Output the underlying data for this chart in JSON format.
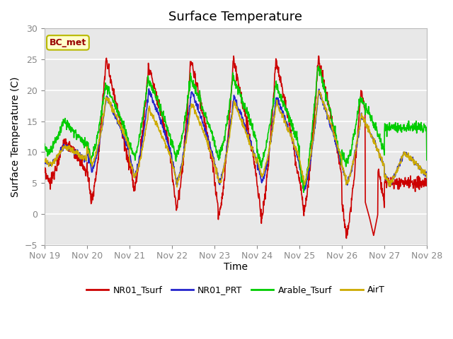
{
  "title": "Surface Temperature",
  "ylabel": "Surface Temperature (C)",
  "xlabel": "Time",
  "ylim": [
    -5,
    30
  ],
  "yticks": [
    -5,
    0,
    5,
    10,
    15,
    20,
    25,
    30
  ],
  "x_tick_labels": [
    "Nov 19",
    "Nov 20",
    "Nov 21",
    "Nov 22",
    "Nov 23",
    "Nov 24",
    "Nov 25",
    "Nov 26",
    "Nov 27",
    "Nov 28"
  ],
  "plot_bg_color": "#e8e8e8",
  "annotation_text": "BC_met",
  "annotation_bg": "#ffffcc",
  "annotation_border": "#b8b800",
  "legend_entries": [
    "NR01_Tsurf",
    "NR01_PRT",
    "Arable_Tsurf",
    "AirT"
  ],
  "line_colors": [
    "#cc0000",
    "#2222cc",
    "#00cc00",
    "#ccaa00"
  ],
  "line_width": 1.2
}
